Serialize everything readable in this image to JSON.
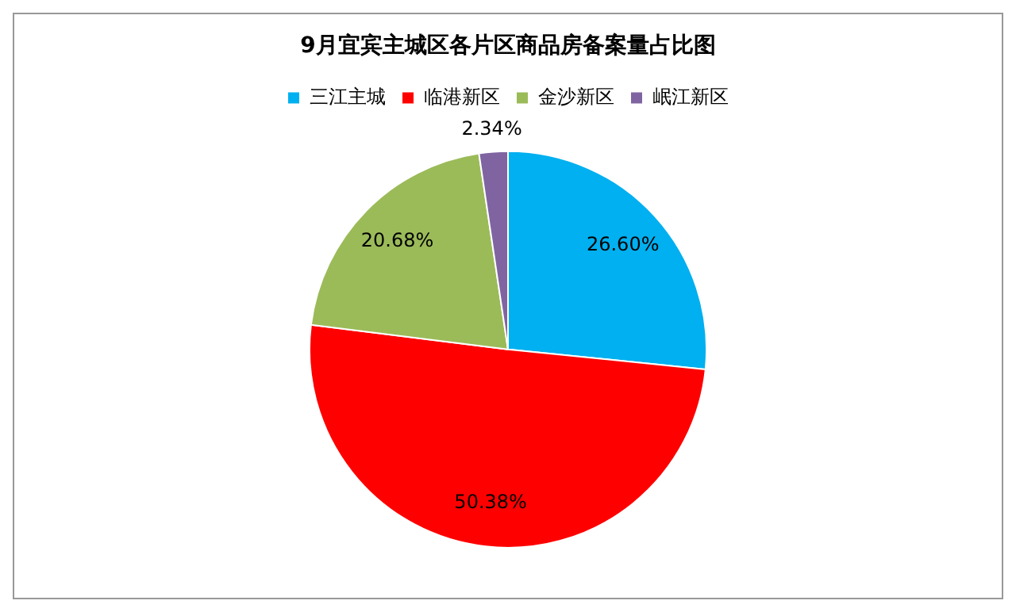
{
  "chart_data": {
    "type": "pie",
    "title": "9月宜宾主城区各片区商品房备案量占比图",
    "categories": [
      "三江主城",
      "临港新区",
      "金沙新区",
      "岷江新区"
    ],
    "values": [
      26.6,
      50.38,
      20.68,
      2.34
    ],
    "colors": [
      "#00b0f0",
      "#ff0000",
      "#9bbb59",
      "#8064a2"
    ],
    "value_labels": [
      "26.60%",
      "50.38%",
      "20.68%",
      "2.34%"
    ],
    "legend": "top"
  }
}
